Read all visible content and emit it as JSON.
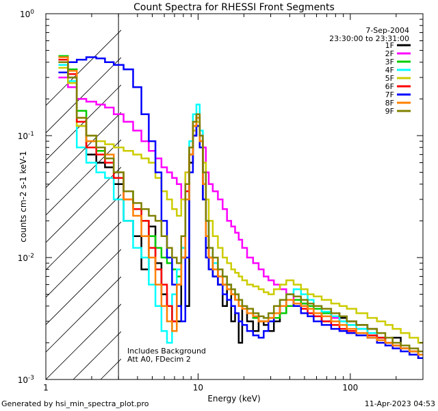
{
  "chart_data": {
    "type": "line",
    "title": "Count Spectra for RHESSI Front Segments",
    "xlabel": "Energy (keV)",
    "ylabel": "counts cm-2 s-1 keV-1",
    "xscale": "log",
    "yscale": "log",
    "xlim": [
      1,
      300
    ],
    "ylim": [
      0.001,
      1
    ],
    "x_tick_labels": [
      "1",
      "10",
      "100"
    ],
    "y_tick_labels": [
      "10^-3",
      "10^-2",
      "10^-1",
      "10^0"
    ],
    "date": "7-Sep-2004",
    "time_range": "23:30:00 to 23:31:00",
    "annotations": [
      "Includes Background",
      "Att A0, FDecim 2"
    ],
    "hatched_region_keV": [
      1,
      3
    ],
    "energy_bins_keV": [
      1.3,
      1.5,
      1.7,
      2.0,
      2.3,
      2.6,
      3.0,
      3.5,
      4.0,
      4.5,
      5.0,
      5.5,
      6.0,
      6.5,
      7.0,
      7.5,
      8.0,
      8.5,
      9.0,
      9.5,
      10.0,
      10.5,
      11.0,
      11.5,
      12.0,
      13.0,
      14.0,
      15.0,
      16.0,
      17.0,
      18.0,
      19.0,
      20.0,
      22.0,
      24.0,
      26.0,
      28.0,
      30.0,
      33.0,
      36.0,
      40.0,
      45.0,
      50.0,
      55.0,
      60.0,
      70.0,
      80.0,
      90.0,
      100.0,
      120.0,
      140.0,
      160.0,
      180.0,
      200.0,
      230.0,
      260.0,
      300.0
    ],
    "series": [
      {
        "name": "1F",
        "color": "#000000",
        "values": [
          0.4,
          0.3,
          0.12,
          0.07,
          0.06,
          0.055,
          0.04,
          0.02,
          0.015,
          0.008,
          0.018,
          0.009,
          0.005,
          0.004,
          0.003,
          0.003,
          0.012,
          0.004,
          0.06,
          0.1,
          0.12,
          0.08,
          0.03,
          0.012,
          0.008,
          0.007,
          0.006,
          0.004,
          0.006,
          0.003,
          0.0035,
          0.002,
          0.004,
          0.003,
          0.0025,
          0.003,
          0.0028,
          0.0025,
          0.003,
          0.0035,
          0.004,
          0.0045,
          0.004,
          0.0038,
          0.0035,
          0.003,
          0.0035,
          0.0032,
          0.003,
          0.0028,
          0.0026,
          0.0022,
          0.002,
          0.0022,
          0.0018,
          0.0016,
          0.0015
        ]
      },
      {
        "name": "2F",
        "color": "#ff00ff",
        "values": [
          0.3,
          0.25,
          0.2,
          0.19,
          0.18,
          0.17,
          0.15,
          0.13,
          0.11,
          0.09,
          0.075,
          0.065,
          0.055,
          0.05,
          0.045,
          0.04,
          0.03,
          0.05,
          0.08,
          0.11,
          0.13,
          0.1,
          0.08,
          0.05,
          0.04,
          0.035,
          0.03,
          0.025,
          0.02,
          0.018,
          0.016,
          0.014,
          0.012,
          0.01,
          0.009,
          0.008,
          0.007,
          0.0065,
          0.006,
          0.0055,
          0.005,
          0.0045,
          0.0042,
          0.004,
          0.0038,
          0.0035,
          0.0032,
          0.003,
          0.0028,
          0.0026,
          0.0024,
          0.0022,
          0.002,
          0.0019,
          0.0018,
          0.0017,
          0.0016
        ]
      },
      {
        "name": "3F",
        "color": "#00cc00",
        "values": [
          0.45,
          0.35,
          0.16,
          0.09,
          0.075,
          0.065,
          0.05,
          0.035,
          0.025,
          0.02,
          0.015,
          0.012,
          0.01,
          0.009,
          0.008,
          0.007,
          0.01,
          0.03,
          0.07,
          0.12,
          0.15,
          0.09,
          0.04,
          0.015,
          0.01,
          0.008,
          0.007,
          0.006,
          0.0055,
          0.005,
          0.0045,
          0.004,
          0.0038,
          0.0035,
          0.0032,
          0.003,
          0.003,
          0.003,
          0.0032,
          0.0035,
          0.004,
          0.0045,
          0.0042,
          0.004,
          0.0038,
          0.0035,
          0.0033,
          0.003,
          0.0028,
          0.0026,
          0.0024,
          0.0022,
          0.002,
          0.0019,
          0.0018,
          0.0017,
          0.0016
        ]
      },
      {
        "name": "4F",
        "color": "#00ffff",
        "values": [
          0.38,
          0.28,
          0.08,
          0.06,
          0.05,
          0.045,
          0.03,
          0.02,
          0.012,
          0.01,
          0.006,
          0.004,
          0.0025,
          0.002,
          0.005,
          0.008,
          0.012,
          0.04,
          0.09,
          0.15,
          0.18,
          0.11,
          0.05,
          0.02,
          0.012,
          0.009,
          0.008,
          0.007,
          0.006,
          0.0055,
          0.005,
          0.0045,
          0.004,
          0.0038,
          0.0035,
          0.0033,
          0.0032,
          0.0035,
          0.004,
          0.0045,
          0.005,
          0.0055,
          0.005,
          0.0045,
          0.004,
          0.0036,
          0.0033,
          0.003,
          0.0028,
          0.0026,
          0.0024,
          0.0022,
          0.002,
          0.0019,
          0.0018,
          0.0017,
          0.0016
        ]
      },
      {
        "name": "5F",
        "color": "#cccc00",
        "values": [
          0.36,
          0.27,
          0.12,
          0.1,
          0.09,
          0.085,
          0.08,
          0.075,
          0.07,
          0.065,
          0.06,
          0.045,
          0.035,
          0.03,
          0.025,
          0.022,
          0.03,
          0.05,
          0.08,
          0.11,
          0.13,
          0.09,
          0.06,
          0.03,
          0.02,
          0.015,
          0.012,
          0.01,
          0.009,
          0.008,
          0.0075,
          0.007,
          0.0065,
          0.006,
          0.0058,
          0.0055,
          0.0052,
          0.005,
          0.0055,
          0.006,
          0.0065,
          0.006,
          0.0055,
          0.005,
          0.0048,
          0.0045,
          0.0042,
          0.004,
          0.0038,
          0.0035,
          0.0032,
          0.003,
          0.0028,
          0.0026,
          0.0024,
          0.0022,
          0.002
        ]
      },
      {
        "name": "6F",
        "color": "#ff0000",
        "values": [
          0.42,
          0.32,
          0.13,
          0.08,
          0.07,
          0.06,
          0.045,
          0.03,
          0.025,
          0.02,
          0.012,
          0.008,
          0.006,
          0.004,
          0.003,
          0.006,
          0.01,
          0.035,
          0.07,
          0.12,
          0.14,
          0.09,
          0.04,
          0.015,
          0.01,
          0.008,
          0.007,
          0.006,
          0.0055,
          0.005,
          0.0045,
          0.004,
          0.0038,
          0.0035,
          0.0033,
          0.003,
          0.003,
          0.0032,
          0.0035,
          0.004,
          0.0045,
          0.004,
          0.0038,
          0.0035,
          0.0033,
          0.003,
          0.0028,
          0.0026,
          0.0025,
          0.0024,
          0.0023,
          0.0022,
          0.002,
          0.0019,
          0.0018,
          0.0017,
          0.0016
        ]
      },
      {
        "name": "7F",
        "color": "#0000ff",
        "values": [
          0.33,
          0.4,
          0.42,
          0.44,
          0.43,
          0.4,
          0.38,
          0.35,
          0.25,
          0.15,
          0.09,
          0.05,
          0.02,
          0.01,
          0.006,
          0.004,
          0.003,
          0.01,
          0.05,
          0.1,
          0.12,
          0.08,
          0.03,
          0.01,
          0.008,
          0.007,
          0.006,
          0.005,
          0.0045,
          0.004,
          0.0035,
          0.003,
          0.0028,
          0.0025,
          0.0023,
          0.0022,
          0.0025,
          0.003,
          0.0035,
          0.004,
          0.0045,
          0.004,
          0.0035,
          0.0033,
          0.003,
          0.0028,
          0.0026,
          0.0025,
          0.0024,
          0.0023,
          0.0022,
          0.002,
          0.0019,
          0.0018,
          0.0017,
          0.0016,
          0.0015
        ]
      },
      {
        "name": "8F",
        "color": "#ff8000",
        "values": [
          0.44,
          0.34,
          0.14,
          0.09,
          0.08,
          0.07,
          0.05,
          0.03,
          0.022,
          0.015,
          0.01,
          0.006,
          0.004,
          0.003,
          0.0025,
          0.006,
          0.01,
          0.03,
          0.07,
          0.12,
          0.14,
          0.09,
          0.04,
          0.015,
          0.01,
          0.008,
          0.007,
          0.006,
          0.0055,
          0.005,
          0.0045,
          0.004,
          0.0038,
          0.0035,
          0.0033,
          0.003,
          0.003,
          0.0032,
          0.0035,
          0.004,
          0.0045,
          0.0042,
          0.004,
          0.0038,
          0.0035,
          0.0033,
          0.003,
          0.0028,
          0.0026,
          0.0024,
          0.0022,
          0.0021,
          0.002,
          0.0019,
          0.0018,
          0.0017,
          0.0016
        ]
      },
      {
        "name": "9F",
        "color": "#808000",
        "values": [
          0.4,
          0.3,
          0.14,
          0.1,
          0.08,
          0.065,
          0.05,
          0.035,
          0.028,
          0.025,
          0.022,
          0.02,
          0.015,
          0.012,
          0.01,
          0.009,
          0.015,
          0.04,
          0.08,
          0.13,
          0.15,
          0.1,
          0.05,
          0.02,
          0.012,
          0.01,
          0.008,
          0.007,
          0.006,
          0.0055,
          0.005,
          0.0045,
          0.004,
          0.0038,
          0.0035,
          0.0033,
          0.0032,
          0.0035,
          0.004,
          0.0045,
          0.005,
          0.0048,
          0.0045,
          0.0042,
          0.004,
          0.0038,
          0.0035,
          0.0033,
          0.003,
          0.0028,
          0.0026,
          0.0024,
          0.0022,
          0.002,
          0.0019,
          0.0018,
          0.0017
        ]
      }
    ]
  },
  "footer": {
    "left": "Generated by hsi_min_spectra_plot.pro",
    "right": "11-Apr-2023 04:53"
  }
}
